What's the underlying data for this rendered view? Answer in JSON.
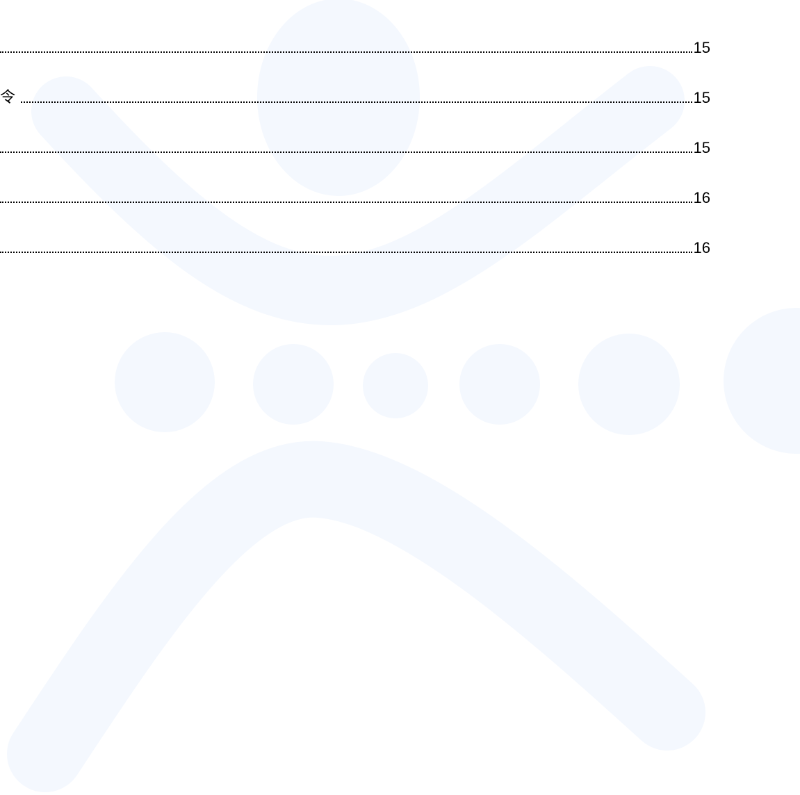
{
  "toc": [
    {
      "page": "15"
    },
    {
      "text": "令",
      "page": "15"
    },
    {
      "page": "15"
    },
    {
      "page": "16"
    },
    {
      "page": "16"
    }
  ]
}
